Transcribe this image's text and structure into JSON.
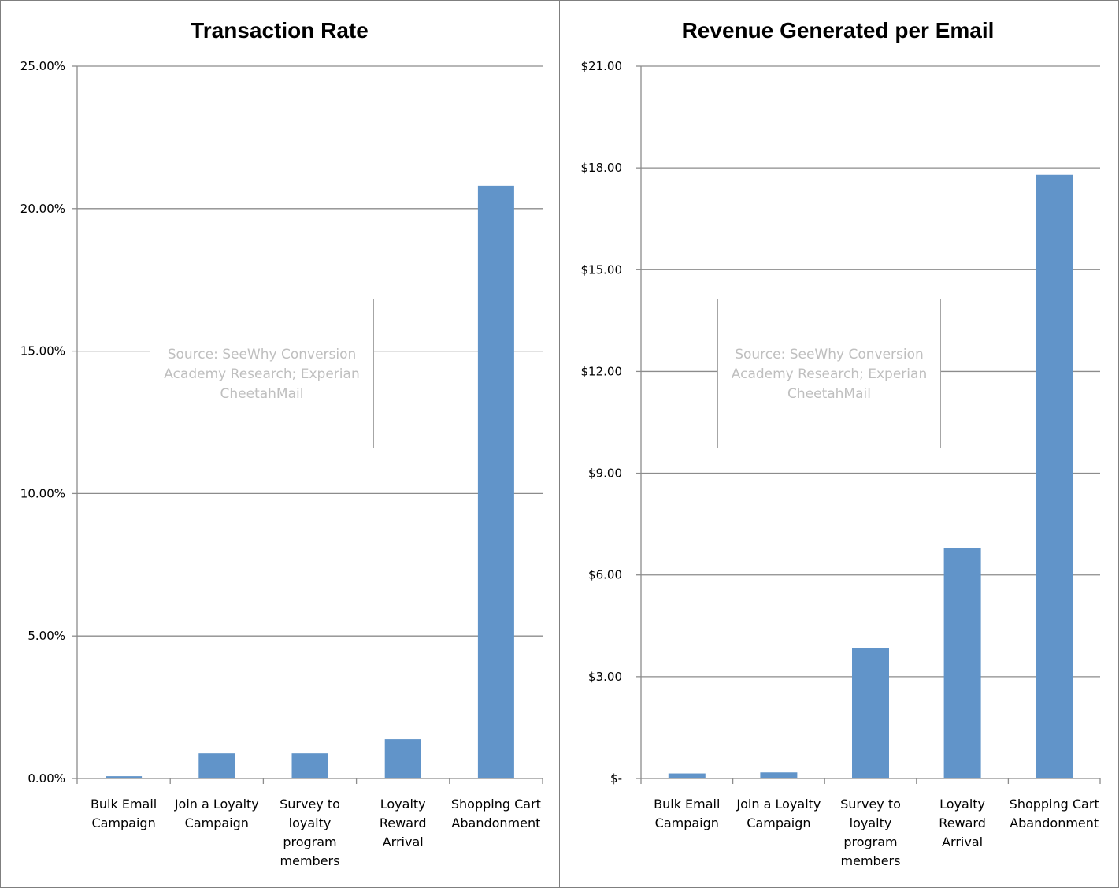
{
  "source_note": "Source: SeeWhy Conversion Academy Research; Experian CheetahMail",
  "chart_data": [
    {
      "type": "bar",
      "title": "Transaction Rate",
      "xlabel": "",
      "ylabel": "",
      "categories": [
        [
          "Bulk Email",
          "Campaign"
        ],
        [
          "Join a  Loyalty",
          "Campaign"
        ],
        [
          "Survey to",
          "loyalty",
          "program",
          "members"
        ],
        [
          "Loyalty",
          "Reward",
          "Arrival"
        ],
        [
          "Shopping Cart",
          "Abandonment"
        ]
      ],
      "values": [
        0.0008,
        0.0088,
        0.0088,
        0.0138,
        0.208
      ],
      "ylim": [
        0,
        0.25
      ],
      "yticks": [
        0,
        0.05,
        0.1,
        0.15,
        0.2,
        0.25
      ],
      "ytick_labels": [
        "0.00%",
        "5.00%",
        "10.00%",
        "15.00%",
        "20.00%",
        "25.00%"
      ],
      "grid": true,
      "bar_color": "#6194c9",
      "grid_color": "#8c8c8c"
    },
    {
      "type": "bar",
      "title": "Revenue Generated per Email",
      "xlabel": "",
      "ylabel": "",
      "categories": [
        [
          "Bulk Email",
          "Campaign"
        ],
        [
          "Join a  Loyalty",
          "Campaign"
        ],
        [
          "Survey to",
          "loyalty",
          "program",
          "members"
        ],
        [
          "Loyalty",
          "Reward",
          "Arrival"
        ],
        [
          "Shopping Cart",
          "Abandonment"
        ]
      ],
      "values": [
        0.15,
        0.18,
        3.85,
        6.8,
        17.8
      ],
      "ylim": [
        0,
        21
      ],
      "yticks": [
        0,
        3,
        6,
        9,
        12,
        15,
        18,
        21
      ],
      "ytick_labels": [
        "$-",
        "$3.00",
        "$6.00",
        "$9.00",
        "$12.00",
        "$15.00",
        "$18.00",
        "$21.00"
      ],
      "grid": true,
      "bar_color": "#6194c9",
      "grid_color": "#8c8c8c"
    }
  ]
}
